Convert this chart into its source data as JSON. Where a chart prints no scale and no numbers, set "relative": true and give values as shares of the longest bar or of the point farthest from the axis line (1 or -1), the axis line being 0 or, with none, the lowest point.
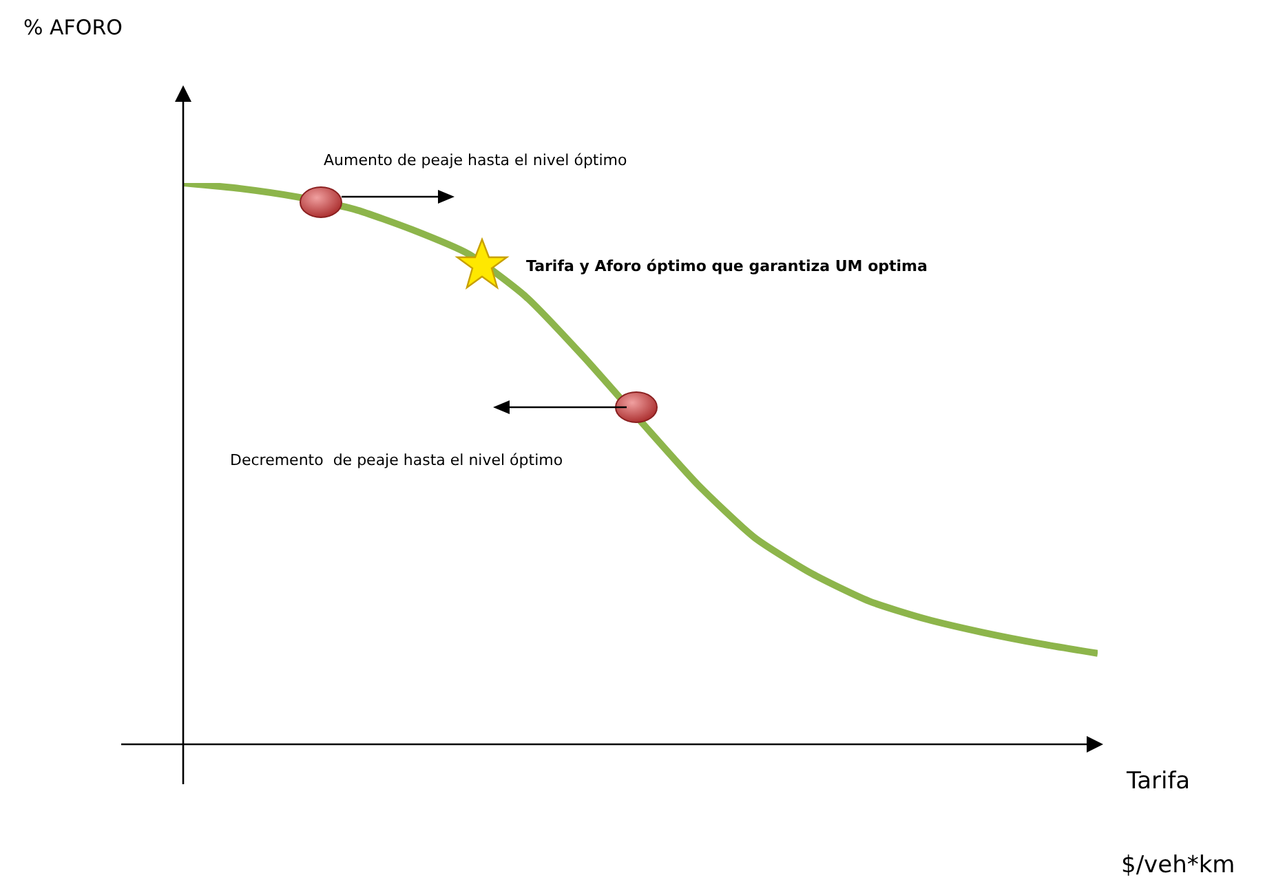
{
  "chart_data": {
    "type": "line",
    "relative": true,
    "xlabel": "Tarifa",
    "categories": [
      null,
      null,
      null,
      null,
      null,
      null,
      null,
      null,
      null,
      null,
      null,
      null,
      null,
      null,
      null,
      null,
      null
    ],
    "series": [
      {
        "color": "#8db54b",
        "values": [
          1,
          0.99,
          0.975,
          0.953,
          0.917,
          0.873,
          0.797,
          0.691,
          0.576,
          0.463,
          0.368,
          0.304,
          0.255,
          0.223,
          0.199,
          0.179,
          0.162
        ]
      }
    ],
    "annotations": [
      "% AFORO",
      "Aumento de peaje hasta el nivel óptimo",
      "Tarifa y Aforo óptimo que garantiza UM optima",
      "Decremento  de peaje hasta el nivel óptimo",
      "$/veh*km"
    ],
    "marker": "none",
    "line_style": "solid",
    "grid": false,
    "tick_labels": false
  }
}
